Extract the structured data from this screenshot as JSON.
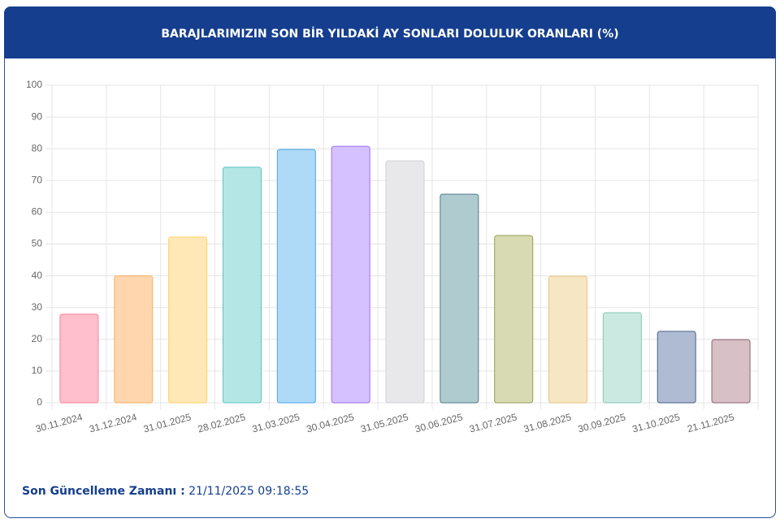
{
  "chart_data": {
    "type": "bar",
    "title": "BARAJLARIMIZIN SON BİR YILDAKİ AY SONLARI DOLULUK ORANLARI (%)",
    "categories": [
      "30.11.2024",
      "31.12.2024",
      "31.01.2025",
      "28.02.2025",
      "31.03.2025",
      "30.04.2025",
      "31.05.2025",
      "30.06.2025",
      "31.07.2025",
      "31.08.2025",
      "30.09.2025",
      "31.10.2025",
      "21.11.2025"
    ],
    "values": [
      27.9,
      40,
      52.2,
      74.2,
      79.8,
      80.8,
      76.2,
      65.7,
      52.7,
      39.9,
      28.4,
      22.5,
      19.9
    ],
    "colors": [
      "#ffbfcd",
      "#ffd6ad",
      "#ffe8b5",
      "#b4e6e6",
      "#aed9f7",
      "#d5c1ff",
      "#e8e8ea",
      "#b0cbcf",
      "#d7dab2",
      "#f6e6c3",
      "#cbe9e0",
      "#aebbd2",
      "#d7c0c6"
    ],
    "border_colors": [
      "#ff7d97",
      "#ffae66",
      "#ffd166",
      "#5cc4c4",
      "#4aa8e8",
      "#9a70f0",
      "#cfd0d4",
      "#4e7f88",
      "#96a050",
      "#e5c77f",
      "#86c9b4",
      "#4a6388",
      "#8f6473"
    ],
    "ylim": [
      0,
      100
    ],
    "yticks": [
      0,
      10,
      20,
      30,
      40,
      50,
      60,
      70,
      80,
      90,
      100
    ],
    "grid": true
  },
  "footer": {
    "label": "Son Güncelleme Zamanı :",
    "value": "21/11/2025 09:18:55"
  }
}
